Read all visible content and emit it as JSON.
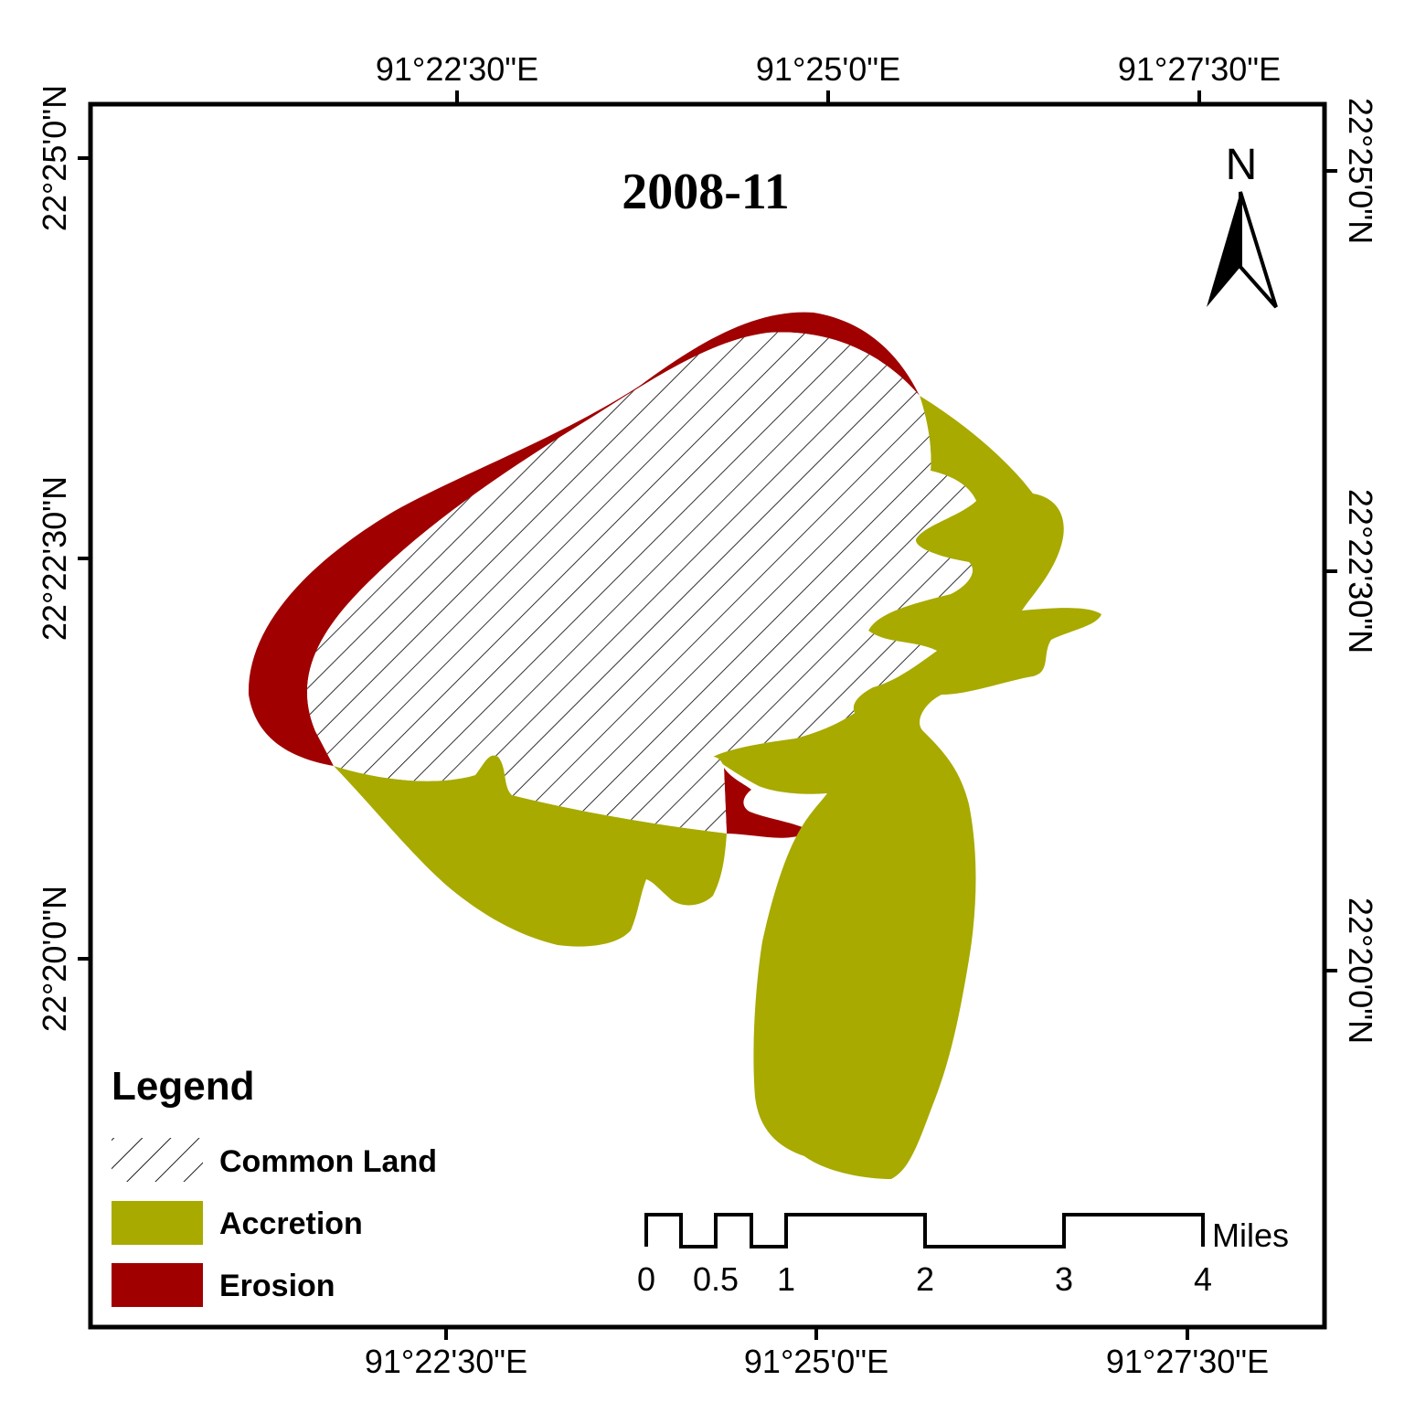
{
  "map": {
    "title": "2008-11",
    "north_label": "N",
    "top_coords": [
      "91°22'30\"E",
      "91°25'0\"E",
      "91°27'30\"E"
    ],
    "bottom_coords": [
      "91°22'30\"E",
      "91°25'0\"E",
      "91°27'30\"E"
    ],
    "left_coords": [
      "22°25'0\"N",
      "22°22'30\"N",
      "22°20'0\"N"
    ],
    "right_coords": [
      "22°25'0\"N",
      "22°22'30\"N",
      "22°20'0\"N"
    ]
  },
  "legend": {
    "title": "Legend",
    "items": [
      {
        "label": "Common Land",
        "pattern": "hatch"
      },
      {
        "label": "Accretion",
        "color": "#a8aa00"
      },
      {
        "label": "Erosion",
        "color": "#a00000"
      }
    ]
  },
  "scale_bar": {
    "labels": [
      "0",
      "0.5",
      "1",
      "2",
      "3",
      "4"
    ],
    "unit": "Miles"
  },
  "colors": {
    "accretion": "#a8aa00",
    "erosion": "#a00000",
    "frame": "#000000"
  }
}
